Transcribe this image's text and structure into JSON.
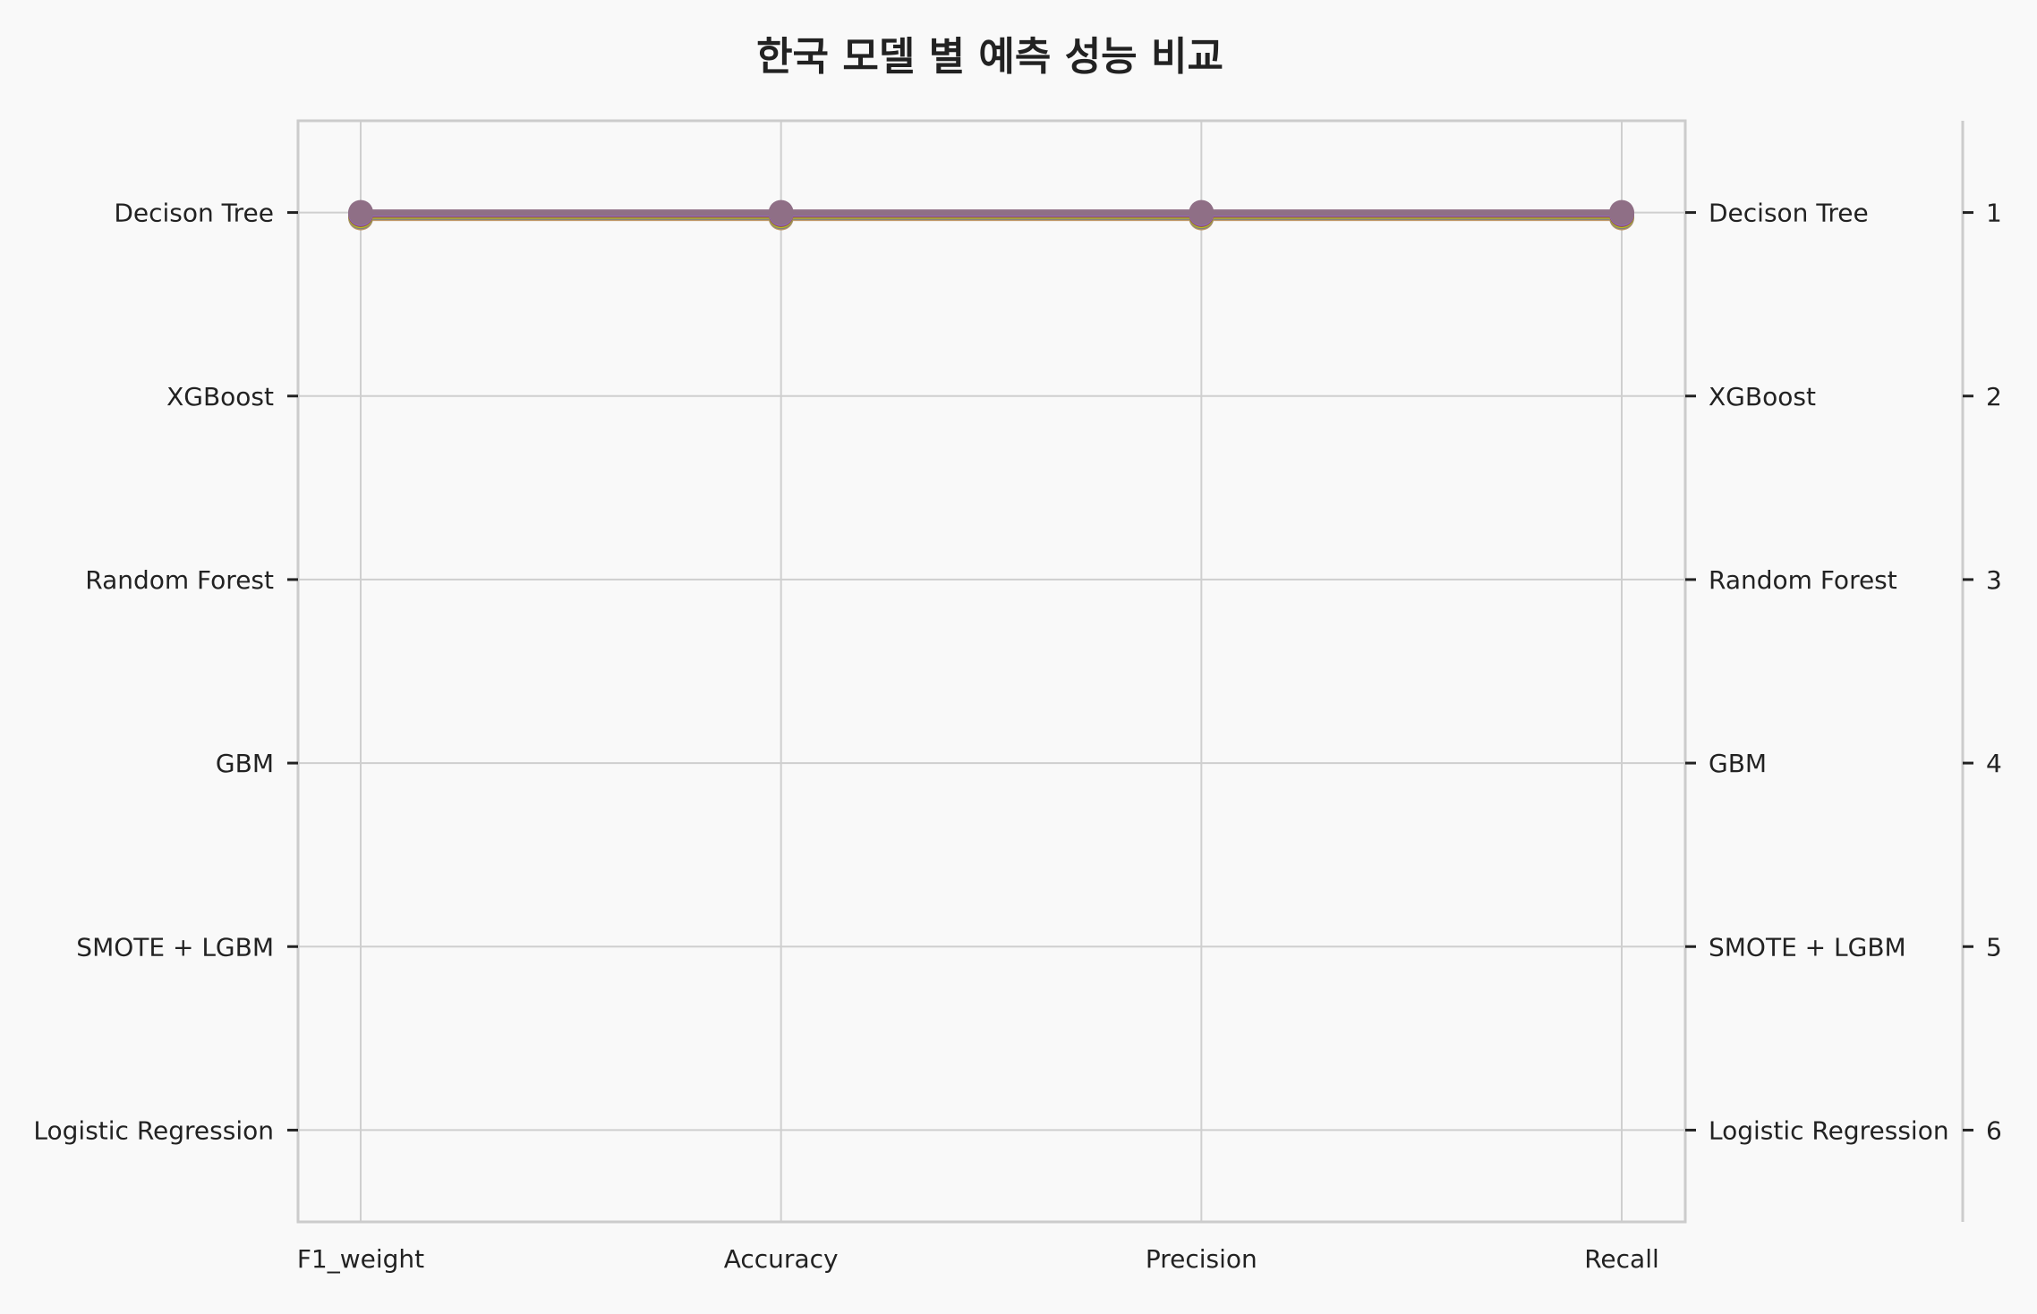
{
  "chart_data": {
    "type": "line",
    "title": "한국 모델 별 예측 성능 비교",
    "categories": [
      "F1_weight",
      "Accuracy",
      "Precision",
      "Recall"
    ],
    "y_left_labels": [
      "Decison Tree",
      "XGBoost",
      "Random Forest",
      "GBM",
      "SMOTE + LGBM",
      "Logistic Regression"
    ],
    "y_right_labels": [
      "Decison Tree",
      "XGBoost",
      "Random Forest",
      "GBM",
      "SMOTE + LGBM",
      "Logistic Regression"
    ],
    "y_rank_labels": [
      "1",
      "2",
      "3",
      "4",
      "5",
      "6"
    ],
    "ylim": [
      0.5,
      6.5
    ],
    "y_inverted": true,
    "grid": true,
    "series": [
      {
        "values": [
          1,
          1,
          1,
          1
        ],
        "color": "#c19a6b"
      },
      {
        "values": [
          1,
          1,
          1,
          1
        ],
        "color": "#7f7f7f"
      },
      {
        "values": [
          1,
          1,
          1,
          1
        ],
        "color": "#bcbd22"
      },
      {
        "values": [
          1,
          1,
          1,
          1
        ],
        "color": "#8c564b"
      },
      {
        "values": [
          1,
          1,
          1,
          1
        ],
        "color": "#9467bd"
      },
      {
        "values": [
          1,
          1,
          1,
          1
        ],
        "color": "#8f6f86"
      }
    ]
  }
}
